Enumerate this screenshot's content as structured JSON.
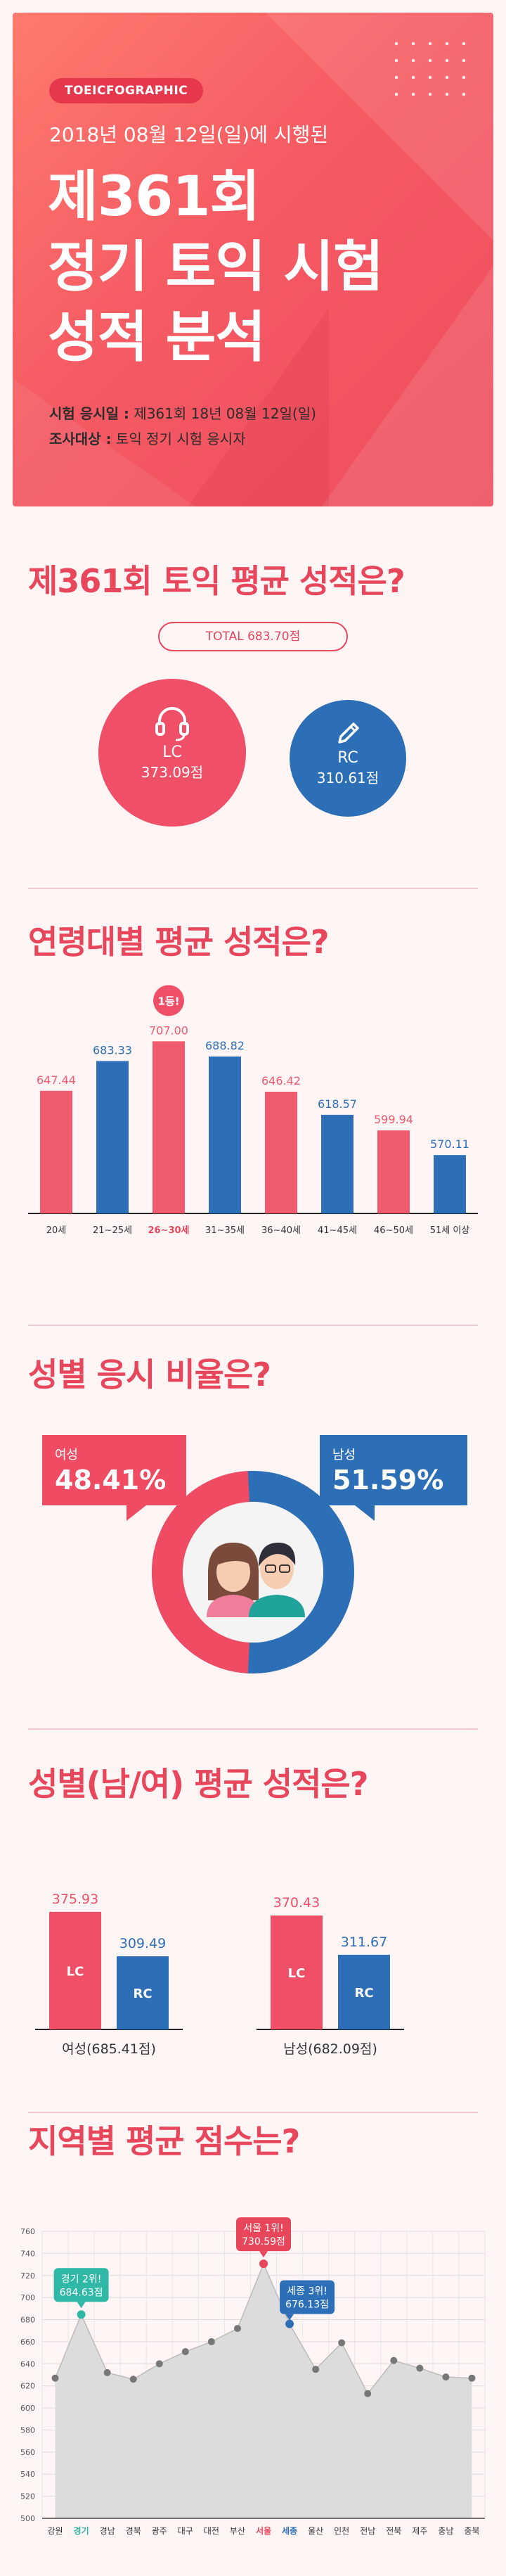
{
  "hero": {
    "badge": "TOEICFOGRAPHIC",
    "subtitle": "2018년 08월 12일(일)에 시행된",
    "title_line1": "제361회",
    "title_line2": "정기 토익 시험",
    "title_line3": "성적 분석",
    "info1_label": "시험 응시일 :",
    "info1_value": " 제361회 18년 08월 12일(일)",
    "info2_label": "조사대상 :",
    "info2_value": " 토익 정기 시험 응시자"
  },
  "section1": {
    "title": "제361회 토익 평균 성적은?",
    "total": "TOTAL 683.70점",
    "lc_label": "LC",
    "lc_value": "373.09점",
    "rc_label": "RC",
    "rc_value": "310.61점",
    "colors": {
      "lc": "#ef5068",
      "rc": "#2c6fb6"
    }
  },
  "section2": {
    "title": "연령대별 평균 성적은?",
    "top_marker": "1등!"
  },
  "section3": {
    "title": "성별 응시 비율은?",
    "female_label": "여성",
    "female_value": "48.41%",
    "male_label": "남성",
    "male_value": "51.59%"
  },
  "section4": {
    "title": "성별(남/여) 평균 성적은?"
  },
  "section5": {
    "title": "지역별 평균 점수는?"
  },
  "chart_data": [
    {
      "type": "bar",
      "title": "연령대별 평균 성적은?",
      "categories": [
        "20세",
        "21~25세",
        "26~30세",
        "31~35세",
        "36~40세",
        "41~45세",
        "46~50세",
        "51세 이상"
      ],
      "values": [
        647.44,
        683.33,
        707.0,
        688.82,
        646.42,
        618.57,
        599.94,
        570.11
      ],
      "value_labels": [
        "647.44",
        "683.33",
        "707.00",
        "688.82",
        "646.42",
        "618.57",
        "599.94",
        "570.11"
      ],
      "colors": [
        "#f05a6e",
        "#2c6fb6",
        "#f05a6e",
        "#2c6fb6",
        "#f05a6e",
        "#2c6fb6",
        "#f05a6e",
        "#2c6fb6"
      ],
      "highlight_index": 2,
      "ylim": [
        500,
        720
      ]
    },
    {
      "type": "bar",
      "title": "성별(남/여) 평균 성적은?",
      "categories": [
        "여성(685.41점)",
        "남성(682.09점)"
      ],
      "series": [
        {
          "name": "LC",
          "values": [
            375.93,
            370.43
          ],
          "labels": [
            "375.93",
            "370.43"
          ]
        },
        {
          "name": "RC",
          "values": [
            309.49,
            311.67
          ],
          "labels": [
            "309.49",
            "311.67"
          ]
        }
      ],
      "ylim": [
        200,
        400
      ]
    },
    {
      "type": "area",
      "title": "지역별 평균 점수는?",
      "categories": [
        "강원",
        "경기",
        "경남",
        "경북",
        "광주",
        "대구",
        "대전",
        "부산",
        "서울",
        "세종",
        "울산",
        "인천",
        "전남",
        "전북",
        "제주",
        "충남",
        "충북"
      ],
      "values": [
        627,
        684.63,
        632,
        626,
        640,
        651,
        660,
        672,
        730.59,
        676.13,
        635,
        659,
        613,
        643,
        636,
        628,
        627
      ],
      "highlights": [
        {
          "index": 1,
          "label": "경기 2위!",
          "value": "684.63점",
          "color": "#2fb8a6"
        },
        {
          "index": 8,
          "label": "서울 1위!",
          "value": "730.59점",
          "color": "#e8465b"
        },
        {
          "index": 9,
          "label": "세종 3위!",
          "value": "676.13점",
          "color": "#2c6fb6"
        }
      ],
      "yticks": [
        "500",
        "520",
        "540",
        "560",
        "580",
        "600",
        "620",
        "640",
        "660",
        "680",
        "700",
        "720",
        "740",
        "760"
      ],
      "ylim": [
        500,
        760
      ],
      "grid": true
    }
  ]
}
